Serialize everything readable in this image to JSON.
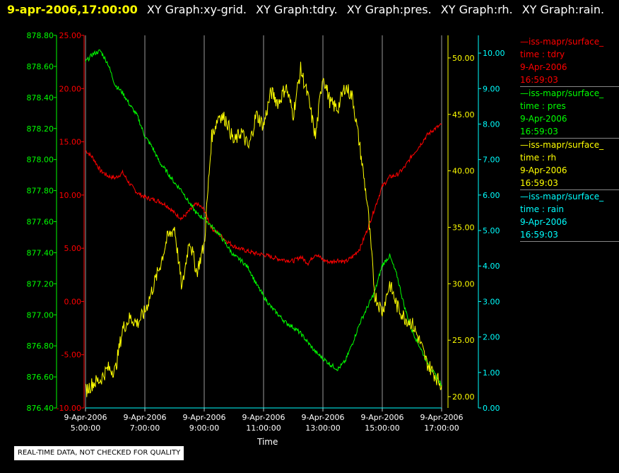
{
  "header": {
    "timestamp": "9-apr-2006,17:00:00",
    "graphs": [
      "XY Graph:xy-grid.",
      "XY Graph:tdry.",
      "XY Graph:pres.",
      "XY Graph:rh.",
      "XY Graph:rain."
    ]
  },
  "legend": [
    {
      "line": "iss-mapr/surface_",
      "field": "time : tdry",
      "date": "9-Apr-2006",
      "time": "16:59:03",
      "color": "#ff0000"
    },
    {
      "line": "iss-mapr/surface_",
      "field": "time : pres",
      "date": "9-Apr-2006",
      "time": "16:59:03",
      "color": "#00ff00"
    },
    {
      "line": "iss-mapr/surface_",
      "field": "time : rh",
      "date": "9-Apr-2006",
      "time": "16:59:03",
      "color": "#ffff00"
    },
    {
      "line": "iss-mapr/surface_",
      "field": "time : rain",
      "date": "9-Apr-2006",
      "time": "16:59:03",
      "color": "#00ffff"
    }
  ],
  "quality_note": "REAL-TIME DATA, NOT CHECKED FOR QUALITY",
  "chart_data": {
    "type": "line",
    "xlabel": "Time",
    "x_ticks": [
      {
        "date": "9-Apr-2006",
        "time": "5:00:00",
        "hour": 5
      },
      {
        "date": "9-Apr-2006",
        "time": "7:00:00",
        "hour": 7
      },
      {
        "date": "9-Apr-2006",
        "time": "9:00:00",
        "hour": 9
      },
      {
        "date": "9-Apr-2006",
        "time": "11:00:00",
        "hour": 11
      },
      {
        "date": "9-Apr-2006",
        "time": "13:00:00",
        "hour": 13
      },
      {
        "date": "9-Apr-2006",
        "time": "15:00:00",
        "hour": 15
      },
      {
        "date": "9-Apr-2006",
        "time": "17:00:00",
        "hour": 17
      }
    ],
    "xlim": [
      5,
      17
    ],
    "grid": "vertical",
    "axes": {
      "pres": {
        "color": "#00ff00",
        "ylim": [
          876.4,
          878.8
        ],
        "ticks": [
          "876.40",
          "876.60",
          "876.80",
          "877.00",
          "877.20",
          "877.40",
          "877.60",
          "877.80",
          "878.00",
          "878.20",
          "878.40",
          "878.60",
          "878.80"
        ]
      },
      "tdry": {
        "color": "#ff0000",
        "ylim": [
          -10,
          25
        ],
        "ticks": [
          "-10.00",
          "-5.00",
          "0.00",
          "5.00",
          "10.00",
          "15.00",
          "20.00",
          "25.00"
        ]
      },
      "rh": {
        "color": "#ffff00",
        "ylim": [
          19,
          52
        ],
        "ticks": [
          "20.00",
          "25.00",
          "30.00",
          "35.00",
          "40.00",
          "45.00",
          "50.00"
        ]
      },
      "rain": {
        "color": "#00ffff",
        "ylim": [
          0,
          10.5
        ],
        "ticks": [
          "0.00",
          "1.00",
          "2.00",
          "3.00",
          "4.00",
          "5.00",
          "6.00",
          "7.00",
          "8.00",
          "9.00",
          "10.00"
        ]
      }
    },
    "series": [
      {
        "name": "tdry",
        "axis": "tdry",
        "color": "#ff0000",
        "x": [
          5,
          5.25,
          5.5,
          5.75,
          6,
          6.25,
          6.5,
          6.75,
          7,
          7.25,
          7.5,
          7.75,
          8,
          8.25,
          8.5,
          8.75,
          9,
          9.25,
          9.5,
          9.75,
          10,
          10.25,
          10.5,
          10.75,
          11,
          11.25,
          11.5,
          11.75,
          12,
          12.25,
          12.5,
          12.75,
          13,
          13.25,
          13.5,
          13.75,
          14,
          14.25,
          14.5,
          14.75,
          15,
          15.25,
          15.5,
          15.75,
          16,
          16.25,
          16.5,
          16.75,
          17
        ],
        "y": [
          14.2,
          13.5,
          12.3,
          11.8,
          11.6,
          12.1,
          11.0,
          10.2,
          9.8,
          9.6,
          9.4,
          9.0,
          8.3,
          7.8,
          8.5,
          9.2,
          8.6,
          6.9,
          6.3,
          5.7,
          5.2,
          4.9,
          4.7,
          4.5,
          4.4,
          4.2,
          4.0,
          3.9,
          3.8,
          4.2,
          3.6,
          4.5,
          3.9,
          3.7,
          3.9,
          3.7,
          4.2,
          5.0,
          6.8,
          8.8,
          10.8,
          11.7,
          11.9,
          12.6,
          13.7,
          14.6,
          15.6,
          16.2,
          16.6
        ]
      },
      {
        "name": "pres",
        "axis": "pres",
        "color": "#00ff00",
        "x": [
          5,
          5.25,
          5.5,
          5.75,
          6,
          6.25,
          6.5,
          6.75,
          7,
          7.25,
          7.5,
          7.75,
          8,
          8.25,
          8.5,
          8.75,
          9,
          9.25,
          9.5,
          9.75,
          10,
          10.25,
          10.5,
          10.75,
          11,
          11.25,
          11.5,
          11.75,
          12,
          12.25,
          12.5,
          12.75,
          13,
          13.25,
          13.5,
          13.75,
          14,
          14.25,
          14.5,
          14.75,
          15,
          15.25,
          15.5,
          15.75,
          16,
          16.25,
          16.5,
          16.75,
          17
        ],
        "y": [
          878.63,
          878.68,
          878.7,
          878.62,
          878.48,
          878.43,
          878.35,
          878.28,
          878.15,
          878.08,
          877.98,
          877.92,
          877.85,
          877.8,
          877.72,
          877.65,
          877.62,
          877.57,
          877.52,
          877.45,
          877.38,
          877.35,
          877.3,
          877.2,
          877.12,
          877.05,
          877.0,
          876.95,
          876.92,
          876.88,
          876.82,
          876.76,
          876.72,
          876.68,
          876.65,
          876.7,
          876.82,
          876.95,
          877.05,
          877.15,
          877.32,
          877.38,
          877.25,
          877.05,
          876.9,
          876.8,
          876.7,
          876.62,
          876.55
        ]
      },
      {
        "name": "rh",
        "axis": "rh",
        "color": "#ffff00",
        "x": [
          5,
          5.25,
          5.5,
          5.75,
          6,
          6.25,
          6.5,
          6.75,
          7,
          7.25,
          7.5,
          7.75,
          8,
          8.25,
          8.5,
          8.75,
          9,
          9.25,
          9.5,
          9.75,
          10,
          10.25,
          10.5,
          10.75,
          11,
          11.25,
          11.5,
          11.75,
          12,
          12.25,
          12.5,
          12.75,
          13,
          13.25,
          13.5,
          13.75,
          14,
          14.25,
          14.5,
          14.75,
          15,
          15.25,
          15.5,
          15.75,
          16,
          16.25,
          16.5,
          16.75,
          17
        ],
        "y": [
          20.5,
          21.2,
          21.5,
          22.5,
          22.3,
          26.0,
          27.0,
          26.5,
          27.5,
          29.5,
          31.5,
          34.0,
          35.0,
          29.5,
          34.0,
          31.0,
          33.5,
          43.0,
          45.0,
          44.5,
          42.5,
          43.5,
          42.0,
          45.0,
          44.0,
          47.0,
          46.0,
          47.5,
          45.0,
          49.0,
          46.5,
          43.0,
          48.5,
          46.0,
          45.5,
          47.5,
          46.5,
          42.0,
          37.0,
          29.0,
          27.5,
          30.0,
          28.0,
          27.0,
          26.5,
          25.0,
          23.0,
          22.0,
          21.0
        ]
      },
      {
        "name": "rain",
        "axis": "rain",
        "color": "#00ffff",
        "x": [
          5,
          17
        ],
        "y": [
          0,
          0
        ]
      }
    ]
  }
}
